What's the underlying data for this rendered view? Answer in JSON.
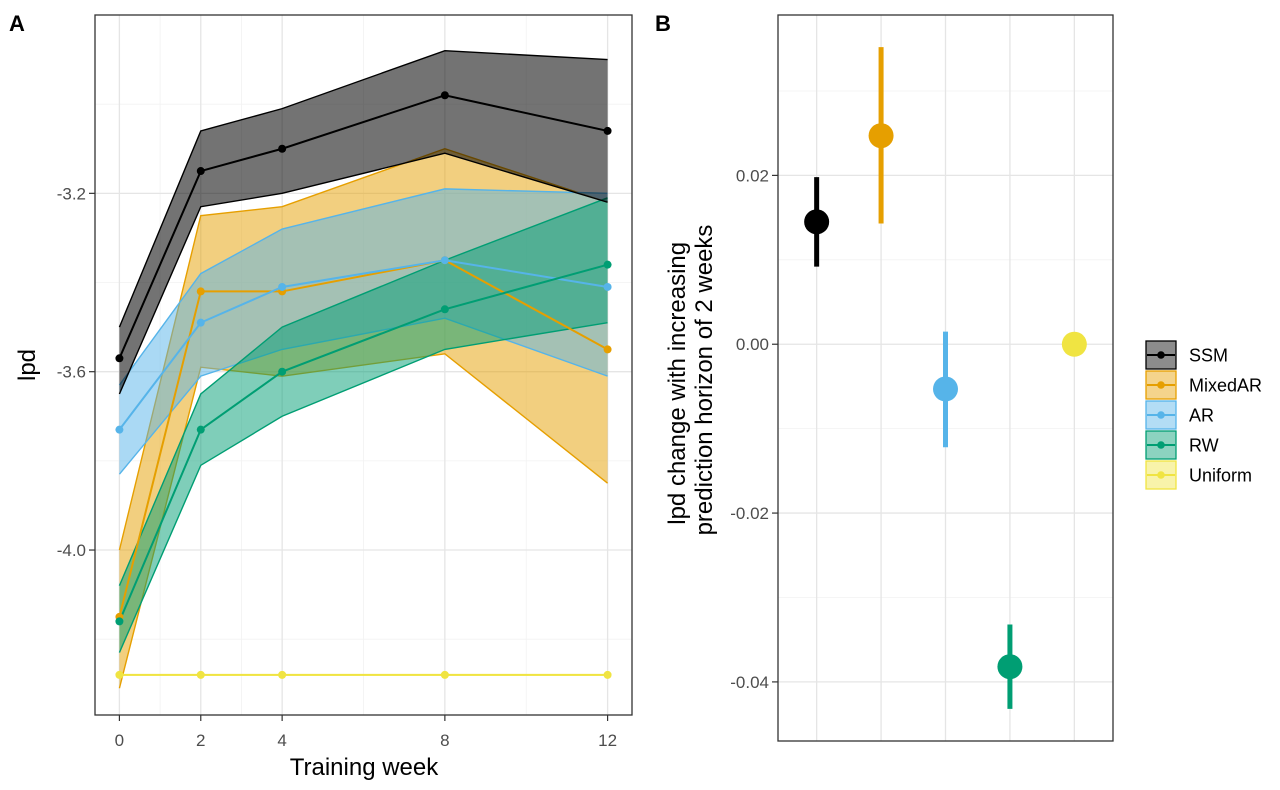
{
  "chart_data": [
    {
      "panel_label": "A",
      "type": "line",
      "xlabel": "Training week",
      "ylabel": "lpd",
      "x": [
        0,
        2,
        4,
        8,
        12
      ],
      "x_ticks": [
        "0",
        "2",
        "4",
        "8",
        "12"
      ],
      "xlim": [
        -0.6,
        12.6
      ],
      "ylim": [
        -4.37,
        -2.8
      ],
      "y_ticks": [
        -3.2,
        -3.6,
        -4.0
      ],
      "y_tick_labels": [
        "-3.2",
        "-3.6",
        "-4.0"
      ],
      "grid": true,
      "series": [
        {
          "name": "Uniform",
          "color": "#F0E442",
          "values": [
            -4.28,
            -4.28,
            -4.28,
            -4.28,
            -4.28
          ],
          "lower": [
            -4.28,
            -4.28,
            -4.28,
            -4.28,
            -4.28
          ],
          "upper": [
            -4.28,
            -4.28,
            -4.28,
            -4.28,
            -4.28
          ]
        },
        {
          "name": "MixedAR",
          "color": "#E69F00",
          "values": [
            -4.15,
            -3.42,
            -3.42,
            -3.35,
            -3.55
          ],
          "lower": [
            -4.31,
            -3.59,
            -3.61,
            -3.56,
            -3.85
          ],
          "upper": [
            -4.0,
            -3.25,
            -3.23,
            -3.1,
            -3.22
          ]
        },
        {
          "name": "AR",
          "color": "#56B4E9",
          "values": [
            -3.73,
            -3.49,
            -3.41,
            -3.35,
            -3.41
          ],
          "lower": [
            -3.83,
            -3.61,
            -3.55,
            -3.48,
            -3.61
          ],
          "upper": [
            -3.63,
            -3.38,
            -3.28,
            -3.19,
            -3.2
          ]
        },
        {
          "name": "RW",
          "color": "#009E73",
          "values": [
            -4.16,
            -3.73,
            -3.6,
            -3.46,
            -3.36
          ],
          "lower": [
            -4.23,
            -3.81,
            -3.7,
            -3.55,
            -3.49
          ],
          "upper": [
            -4.08,
            -3.65,
            -3.5,
            -3.35,
            -3.21
          ]
        },
        {
          "name": "SSM",
          "color": "#000000",
          "values": [
            -3.57,
            -3.15,
            -3.1,
            -2.98,
            -3.06
          ],
          "lower": [
            -3.65,
            -3.23,
            -3.2,
            -3.11,
            -3.22
          ],
          "upper": [
            -3.5,
            -3.06,
            -3.01,
            -2.88,
            -2.9
          ]
        }
      ]
    },
    {
      "panel_label": "B",
      "type": "scatter",
      "xlabel": "",
      "ylabel_lines": [
        "lpd change with increasing",
        "prediction horizon of 2 weeks"
      ],
      "categories": [
        "SSM",
        "MixedAR",
        "AR",
        "RW",
        "Uniform"
      ],
      "ylim": [
        -0.047,
        0.039
      ],
      "y_ticks": [
        0.02,
        0.0,
        -0.02,
        -0.04
      ],
      "y_tick_labels": [
        "0.02",
        "0.00",
        "-0.02",
        "-0.04"
      ],
      "grid": true,
      "points": [
        {
          "name": "SSM",
          "color": "#000000",
          "value": 0.0145,
          "lower": 0.0092,
          "upper": 0.0198
        },
        {
          "name": "MixedAR",
          "color": "#E69F00",
          "value": 0.0247,
          "lower": 0.0143,
          "upper": 0.0352
        },
        {
          "name": "AR",
          "color": "#56B4E9",
          "value": -0.0053,
          "lower": -0.0122,
          "upper": 0.0015
        },
        {
          "name": "RW",
          "color": "#009E73",
          "value": -0.0382,
          "lower": -0.0432,
          "upper": -0.0332
        },
        {
          "name": "Uniform",
          "color": "#F0E442",
          "value": 0.0,
          "lower": 0.0,
          "upper": 0.0
        }
      ]
    }
  ],
  "legend": {
    "items": [
      {
        "label": "SSM",
        "color": "#000000"
      },
      {
        "label": "MixedAR",
        "color": "#E69F00"
      },
      {
        "label": "AR",
        "color": "#56B4E9"
      },
      {
        "label": "RW",
        "color": "#009E73"
      },
      {
        "label": "Uniform",
        "color": "#F0E442"
      }
    ]
  }
}
